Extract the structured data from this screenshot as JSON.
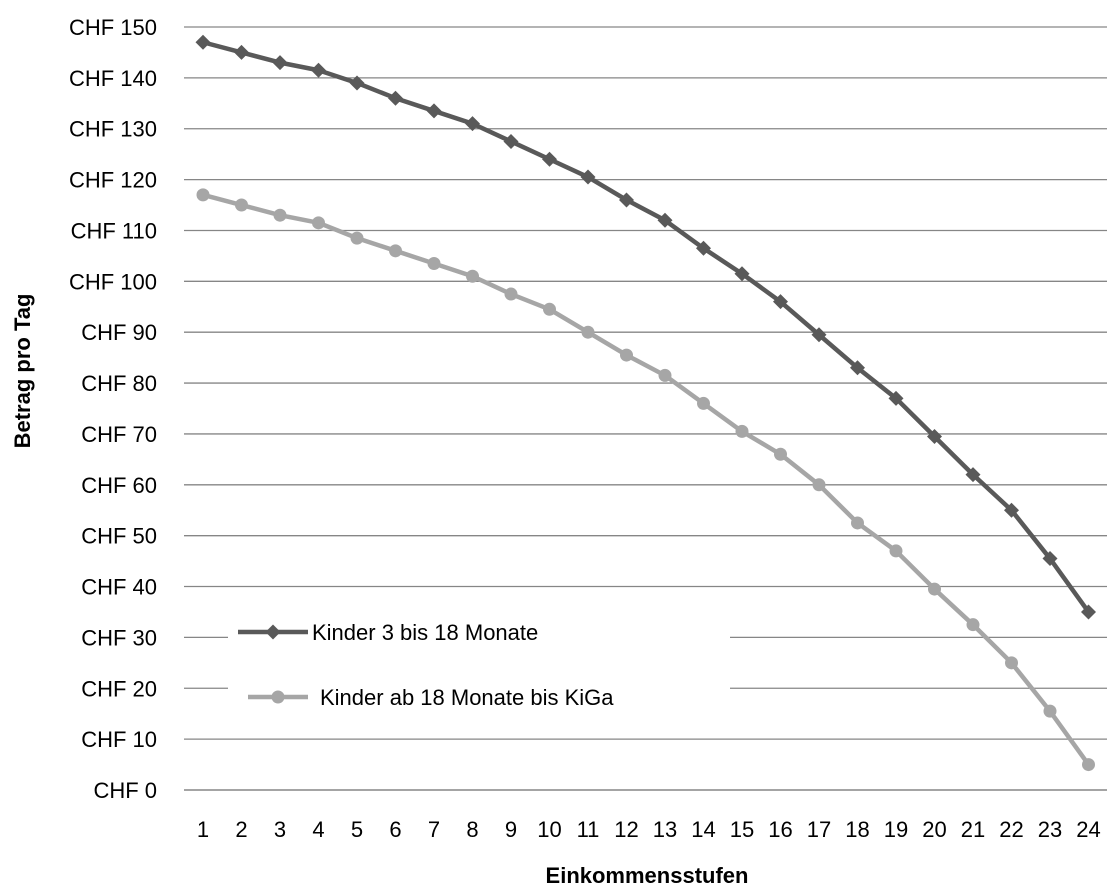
{
  "chart_data": {
    "type": "line",
    "title": "",
    "xlabel": "Einkommensstufen",
    "ylabel": "Betrag pro Tag",
    "ylim": [
      0,
      150
    ],
    "grid": true,
    "legend_position": "bottom-left inside",
    "x": [
      "1",
      "2",
      "3",
      "4",
      "5",
      "6",
      "7",
      "8",
      "9",
      "10",
      "11",
      "12",
      "13",
      "14",
      "15",
      "16",
      "17",
      "18",
      "19",
      "20",
      "21",
      "22",
      "23",
      "24"
    ],
    "y_ticks": [
      "CHF 0",
      "CHF 10",
      "CHF 20",
      "CHF 30",
      "CHF 40",
      "CHF 50",
      "CHF 60",
      "CHF 70",
      "CHF 80",
      "CHF 90",
      "CHF 100",
      "CHF 110",
      "CHF 120",
      "CHF 130",
      "CHF 140",
      "CHF 150"
    ],
    "series": [
      {
        "name": "Kinder 3 bis 18 Monate",
        "color": "#595959",
        "marker": "diamond",
        "values": [
          147,
          145,
          143,
          141.5,
          139,
          136,
          133.5,
          131,
          127.5,
          124,
          120.5,
          116,
          112,
          106.5,
          101.5,
          96,
          89.5,
          83,
          77,
          69.5,
          62,
          55,
          45.5,
          35
        ]
      },
      {
        "name": "Kinder ab 18 Monate bis KiGa",
        "color": "#a6a6a6",
        "marker": "circle",
        "values": [
          117,
          115,
          113,
          111.5,
          108.5,
          106,
          103.5,
          101,
          97.5,
          94.5,
          90,
          85.5,
          81.5,
          76,
          70.5,
          66,
          60,
          52.5,
          47,
          39.5,
          32.5,
          25,
          15.5,
          5
        ]
      }
    ]
  }
}
